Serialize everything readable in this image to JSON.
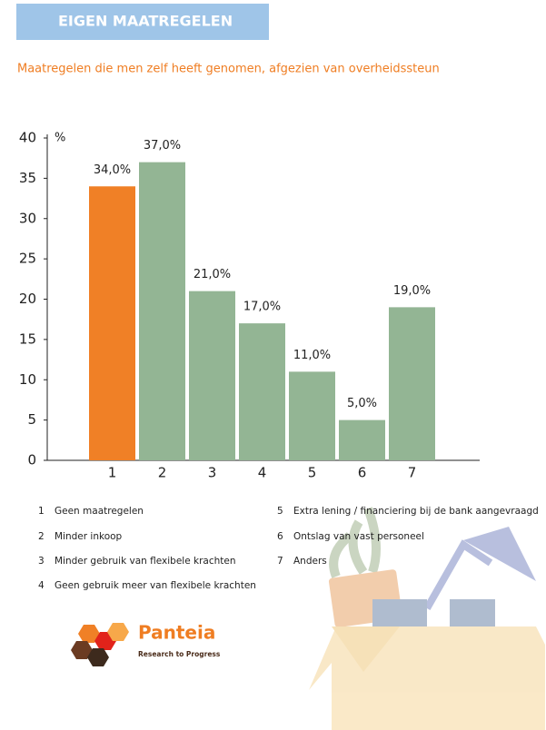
{
  "header": {
    "title": "EIGEN MAATREGELEN",
    "subtitle": "Maatregelen die men zelf heeft genomen, afgezien van overheidssteun"
  },
  "chart_data": {
    "type": "bar",
    "y_unit": "%",
    "categories": [
      "1",
      "2",
      "3",
      "4",
      "5",
      "6",
      "7"
    ],
    "values": [
      34,
      37,
      21,
      17,
      11,
      5,
      19
    ],
    "value_labels": [
      "34,0%",
      "37,0%",
      "21,0%",
      "17,0%",
      "11,0%",
      "5,0%",
      "19,0%"
    ],
    "colors": [
      "#f08026",
      "#93b594",
      "#93b594",
      "#93b594",
      "#93b594",
      "#93b594",
      "#93b594"
    ],
    "ylim": [
      0,
      40
    ],
    "yticks": [
      0,
      5,
      10,
      15,
      20,
      25,
      30,
      35,
      40
    ],
    "grid": false
  },
  "legend": {
    "items": [
      {
        "key": "1",
        "label": "Geen maatregelen"
      },
      {
        "key": "2",
        "label": "Minder inkoop"
      },
      {
        "key": "3",
        "label": "Minder gebruik van flexibele krachten"
      },
      {
        "key": "4",
        "label": "Geen gebruik meer van flexibele krachten"
      },
      {
        "key": "5",
        "label": "Extra lening / financiering bij de bank aangevraagd"
      },
      {
        "key": "6",
        "label": "Ontslag van vast personeel"
      },
      {
        "key": "7",
        "label": "Anders"
      }
    ]
  },
  "logo": {
    "name": "Panteia",
    "tagline": "Research to Progress"
  }
}
